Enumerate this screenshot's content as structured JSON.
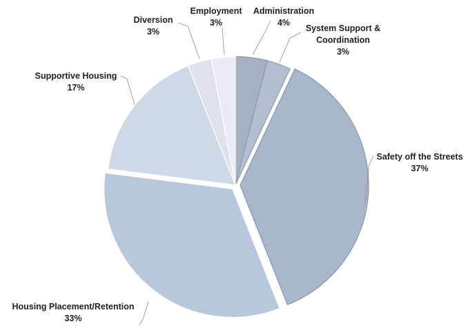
{
  "chart_data": {
    "type": "pie",
    "title": "",
    "slices": [
      {
        "label": "Administration",
        "value": 4,
        "value_label": "4%",
        "color": "#a7b0c2"
      },
      {
        "label": "System Support & Coordination",
        "label_lines": [
          "System Support &",
          "Coordination"
        ],
        "value": 3,
        "value_label": "3%",
        "color": "#b4bdcf"
      },
      {
        "label": "Safety off the Streets",
        "value": 37,
        "value_label": "37%",
        "color": "#a9b7cb"
      },
      {
        "label": "Housing Placement/Retention",
        "value": 33,
        "value_label": "33%",
        "color": "#b8c7dc"
      },
      {
        "label": "Supportive Housing",
        "value": 17,
        "value_label": "17%",
        "color": "#cfd8e6"
      },
      {
        "label": "Diversion",
        "value": 3,
        "value_label": "3%",
        "color": "#dde2eb"
      },
      {
        "label": "Employment",
        "value": 3,
        "value_label": "3%",
        "color": "#e9edf3"
      }
    ],
    "start_angle": "12 o'clock",
    "direction": "clockwise",
    "exploded_slices": [
      "Safety off the Streets",
      "Housing Placement/Retention"
    ]
  }
}
